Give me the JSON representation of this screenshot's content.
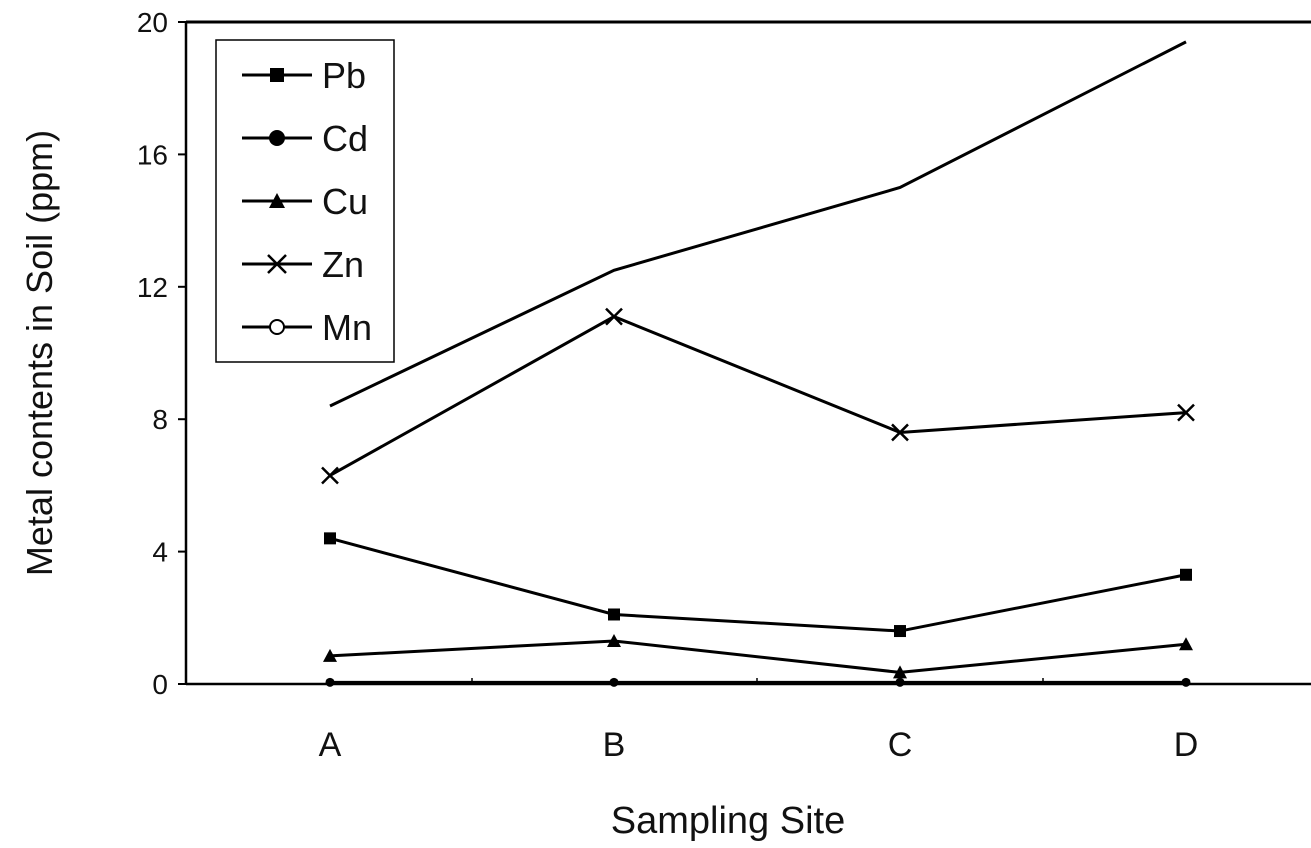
{
  "chart_data": {
    "type": "line",
    "title": "",
    "xlabel": "Sampling Site",
    "ylabel": "Metal contents in Soil (ppm)",
    "categories": [
      "A",
      "B",
      "C",
      "D"
    ],
    "ylim": [
      0,
      20
    ],
    "yticks": [
      0,
      4,
      8,
      12,
      16,
      20
    ],
    "grid": false,
    "legend": "top-left",
    "series": [
      {
        "name": "Pb",
        "marker": "square",
        "values": [
          4.4,
          2.1,
          1.6,
          3.3
        ]
      },
      {
        "name": "Cd",
        "marker": "filled-circle",
        "values": [
          0.05,
          0.05,
          0.05,
          0.05
        ]
      },
      {
        "name": "Cu",
        "marker": "triangle",
        "values": [
          0.85,
          1.3,
          0.35,
          1.2
        ]
      },
      {
        "name": "Zn",
        "marker": "cross",
        "values": [
          6.3,
          11.1,
          7.6,
          8.2
        ]
      },
      {
        "name": "Mn",
        "marker": "open-circle",
        "values": [
          8.4,
          12.5,
          15.0,
          19.4
        ]
      }
    ],
    "colors": {
      "line": "#000000",
      "background": "#ffffff"
    }
  }
}
